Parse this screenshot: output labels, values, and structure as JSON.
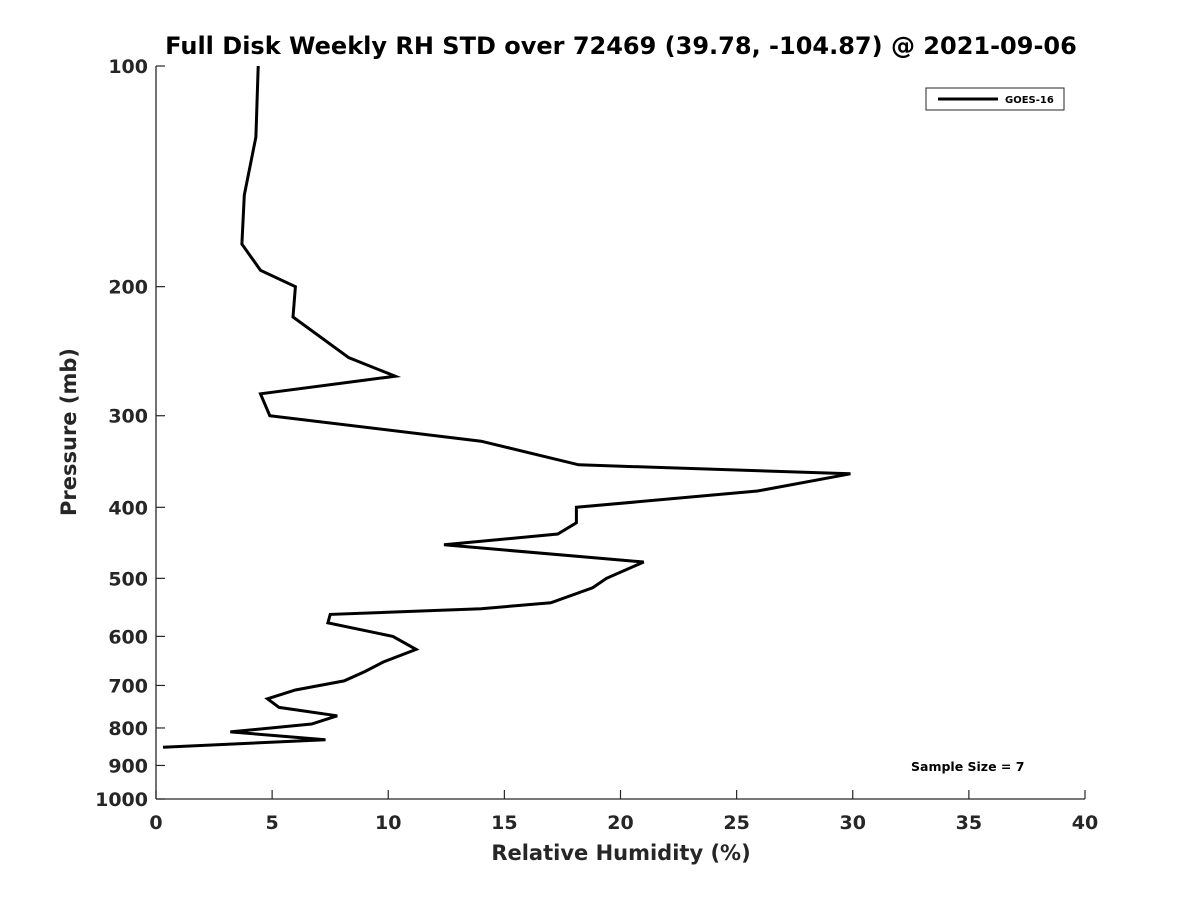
{
  "chart_data": {
    "type": "line",
    "title": "Full Disk Weekly RH STD over 72469 (39.78, -104.87) @ 2021-09-06",
    "xlabel": "Relative Humidity (%)",
    "ylabel": "Pressure (mb)",
    "xlim": [
      0,
      40
    ],
    "ylim": [
      100,
      1000
    ],
    "y_scale": "log",
    "y_reversed": true,
    "grid": false,
    "x_ticks": [
      0,
      5,
      10,
      15,
      20,
      25,
      30,
      35,
      40
    ],
    "y_ticks": [
      100,
      200,
      300,
      400,
      500,
      600,
      700,
      800,
      900,
      1000
    ],
    "legend": {
      "placement": "top-right"
    },
    "annotation": "Sample Size = 7",
    "series": [
      {
        "name": "GOES-16",
        "color": "#000000",
        "points": [
          {
            "p": 100,
            "rh": 4.4
          },
          {
            "p": 125,
            "rh": 4.3
          },
          {
            "p": 150,
            "rh": 3.8
          },
          {
            "p": 175,
            "rh": 3.7
          },
          {
            "p": 190,
            "rh": 4.5
          },
          {
            "p": 200,
            "rh": 6.0
          },
          {
            "p": 220,
            "rh": 5.9
          },
          {
            "p": 250,
            "rh": 8.3
          },
          {
            "p": 265,
            "rh": 10.3
          },
          {
            "p": 280,
            "rh": 4.5
          },
          {
            "p": 300,
            "rh": 4.9
          },
          {
            "p": 325,
            "rh": 14.0
          },
          {
            "p": 350,
            "rh": 18.2
          },
          {
            "p": 360,
            "rh": 29.9
          },
          {
            "p": 380,
            "rh": 25.9
          },
          {
            "p": 400,
            "rh": 18.1
          },
          {
            "p": 420,
            "rh": 18.1
          },
          {
            "p": 435,
            "rh": 17.3
          },
          {
            "p": 450,
            "rh": 12.4
          },
          {
            "p": 475,
            "rh": 21.0
          },
          {
            "p": 500,
            "rh": 19.4
          },
          {
            "p": 515,
            "rh": 18.8
          },
          {
            "p": 540,
            "rh": 17.0
          },
          {
            "p": 550,
            "rh": 14.0
          },
          {
            "p": 560,
            "rh": 7.5
          },
          {
            "p": 575,
            "rh": 7.4
          },
          {
            "p": 600,
            "rh": 10.2
          },
          {
            "p": 625,
            "rh": 11.2
          },
          {
            "p": 650,
            "rh": 9.8
          },
          {
            "p": 670,
            "rh": 9.0
          },
          {
            "p": 690,
            "rh": 8.1
          },
          {
            "p": 710,
            "rh": 6.0
          },
          {
            "p": 730,
            "rh": 4.8
          },
          {
            "p": 750,
            "rh": 5.3
          },
          {
            "p": 770,
            "rh": 7.8
          },
          {
            "p": 790,
            "rh": 6.7
          },
          {
            "p": 810,
            "rh": 3.2
          },
          {
            "p": 830,
            "rh": 7.3
          },
          {
            "p": 850,
            "rh": 0.3
          }
        ]
      }
    ]
  }
}
